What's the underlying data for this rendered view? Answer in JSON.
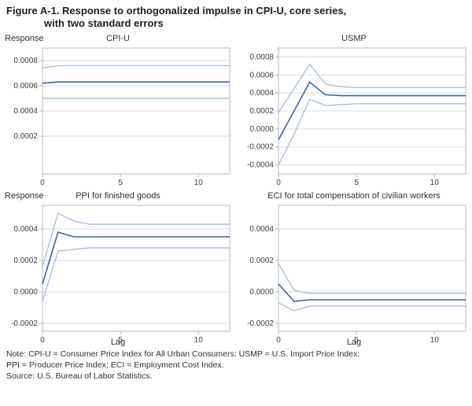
{
  "title_line1": "Figure A-1. Response to orthogonalized impulse in CPI-U, core series,",
  "title_line2": "with two standard errors",
  "notes_line1": "Note: CPI-U = Consumer Price Index for All Urban Consumers; USMP = U.S. Import Price Index;",
  "notes_line2": "PPI = Producer Price Index; ECI = Employment Cost Index.",
  "notes_line3": "Source: U.S. Bureau of Labor Statistics.",
  "axis_color": "#b8b8b8",
  "grid_color": "#dddddd",
  "line_main_color": "#3a62ad",
  "line_band_color": "#9bb7df",
  "background_color": "#ffffff",
  "common": {
    "xlabel": "Lag",
    "ylabel": "Response",
    "xlim": [
      0,
      12
    ],
    "xticks": [
      0,
      5,
      10
    ],
    "label_fontsize": 11,
    "tick_fontsize": 10
  },
  "panels": [
    {
      "id": "cpiu",
      "title": "CPI-U",
      "show_ylabel": true,
      "show_xlabel": false,
      "ylim": [
        -0.0001,
        0.0009
      ],
      "yticks": [
        0.0002,
        0.0004,
        0.0006,
        0.0008
      ],
      "ytick_labels": [
        "0.0002",
        "0.0004",
        "0.0006",
        "0.0008"
      ],
      "x": [
        0,
        1,
        2,
        3,
        4,
        5,
        6,
        7,
        8,
        9,
        10,
        11,
        12
      ],
      "mid": [
        0.00062,
        0.00063,
        0.00063,
        0.00063,
        0.00063,
        0.00063,
        0.00063,
        0.00063,
        0.00063,
        0.00063,
        0.00063,
        0.00063,
        0.00063
      ],
      "upper": [
        0.00074,
        0.00076,
        0.00076,
        0.00076,
        0.00076,
        0.00076,
        0.00076,
        0.00076,
        0.00076,
        0.00076,
        0.00076,
        0.00076,
        0.00076
      ],
      "lower": [
        0.0005,
        0.0005,
        0.0005,
        0.0005,
        0.0005,
        0.0005,
        0.0005,
        0.0005,
        0.0005,
        0.0005,
        0.0005,
        0.0005,
        0.0005
      ]
    },
    {
      "id": "usmp",
      "title": "USMP",
      "show_ylabel": false,
      "show_xlabel": false,
      "ylim": [
        -0.0005,
        0.0009
      ],
      "yticks": [
        -0.0004,
        -0.0002,
        0.0,
        0.0002,
        0.0004,
        0.0006,
        0.0008
      ],
      "ytick_labels": [
        "-0.0004",
        "-0.0002",
        "0.0000",
        "0.0002",
        "0.0004",
        "0.0006",
        "0.0008"
      ],
      "x": [
        0,
        1,
        2,
        3,
        4,
        5,
        6,
        7,
        8,
        9,
        10,
        11,
        12
      ],
      "mid": [
        -0.00012,
        0.0002,
        0.00052,
        0.00038,
        0.00037,
        0.00037,
        0.00037,
        0.00037,
        0.00037,
        0.00037,
        0.00037,
        0.00037,
        0.00037
      ],
      "upper": [
        0.00018,
        0.00045,
        0.00072,
        0.0005,
        0.00047,
        0.00046,
        0.00046,
        0.00046,
        0.00046,
        0.00046,
        0.00046,
        0.00046,
        0.00046
      ],
      "lower": [
        -0.0004,
        -6e-05,
        0.00033,
        0.00026,
        0.00027,
        0.00028,
        0.00028,
        0.00028,
        0.00028,
        0.00028,
        0.00028,
        0.00028,
        0.00028
      ]
    },
    {
      "id": "ppi",
      "title": "PPI for finished goods",
      "show_ylabel": true,
      "show_xlabel": true,
      "ylim": [
        -0.00025,
        0.00055
      ],
      "yticks": [
        -0.0002,
        0.0,
        0.0002,
        0.0004
      ],
      "ytick_labels": [
        "-0.0002",
        "0.0000",
        "0.0002",
        "0.0004"
      ],
      "x": [
        0,
        1,
        2,
        3,
        4,
        5,
        6,
        7,
        8,
        9,
        10,
        11,
        12
      ],
      "mid": [
        5e-05,
        0.00038,
        0.00035,
        0.00035,
        0.00035,
        0.00035,
        0.00035,
        0.00035,
        0.00035,
        0.00035,
        0.00035,
        0.00035,
        0.00035
      ],
      "upper": [
        0.00016,
        0.0005,
        0.00045,
        0.00043,
        0.00043,
        0.00043,
        0.00043,
        0.00043,
        0.00043,
        0.00043,
        0.00043,
        0.00043,
        0.00043
      ],
      "lower": [
        -6e-05,
        0.00026,
        0.00027,
        0.00028,
        0.00028,
        0.00028,
        0.00028,
        0.00028,
        0.00028,
        0.00028,
        0.00028,
        0.00028,
        0.00028
      ]
    },
    {
      "id": "eci",
      "title": "ECI for total compensation of civilian workers",
      "show_ylabel": false,
      "show_xlabel": true,
      "ylim": [
        -0.00025,
        0.00055
      ],
      "yticks": [
        -0.0002,
        0.0,
        0.0002,
        0.0004
      ],
      "ytick_labels": [
        "-0.0002",
        "0.0000",
        "0.0002",
        "0.0004"
      ],
      "x": [
        0,
        1,
        2,
        3,
        4,
        5,
        6,
        7,
        8,
        9,
        10,
        11,
        12
      ],
      "mid": [
        5e-05,
        -6e-05,
        -5e-05,
        -5e-05,
        -5e-05,
        -5e-05,
        -5e-05,
        -5e-05,
        -5e-05,
        -5e-05,
        -5e-05,
        -5e-05,
        -5e-05
      ],
      "upper": [
        0.00018,
        1e-05,
        -1e-05,
        -1e-05,
        -1e-05,
        -1e-05,
        -1e-05,
        -1e-05,
        -1e-05,
        -1e-05,
        -1e-05,
        -1e-05,
        -1e-05
      ],
      "lower": [
        -7e-05,
        -0.00012,
        -9e-05,
        -9e-05,
        -9e-05,
        -9e-05,
        -9e-05,
        -9e-05,
        -9e-05,
        -9e-05,
        -9e-05,
        -9e-05,
        -9e-05
      ]
    }
  ]
}
